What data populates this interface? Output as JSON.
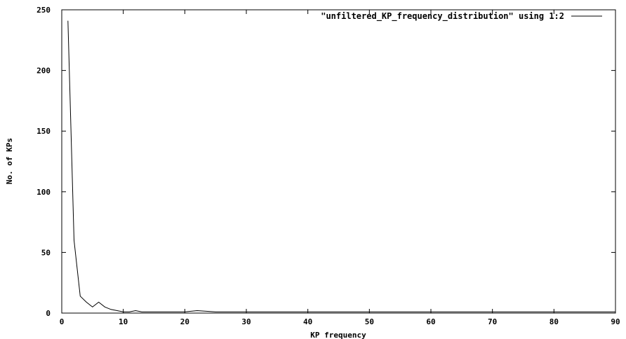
{
  "chart_data": {
    "type": "line",
    "title": "",
    "xlabel": "KP frequency",
    "ylabel": "No. of KPs",
    "xlim": [
      0,
      90
    ],
    "ylim": [
      0,
      250
    ],
    "x_ticks": [
      "0",
      "10",
      "20",
      "30",
      "40",
      "50",
      "60",
      "70",
      "80",
      "90"
    ],
    "y_ticks": [
      "0",
      "50",
      "100",
      "150",
      "200",
      "250"
    ],
    "grid": false,
    "legend_position": "top-right",
    "series": [
      {
        "name": "\"unfiltered_KP_frequency_distribution\" using 1:2",
        "color": "#000000",
        "x": [
          1,
          2,
          3,
          4,
          5,
          6,
          7,
          8,
          9,
          10,
          11,
          12,
          13,
          14,
          15,
          16,
          18,
          20,
          22,
          25,
          30,
          40,
          50,
          60,
          70,
          80,
          90
        ],
        "y": [
          241,
          60,
          14,
          9,
          5,
          9,
          5,
          3,
          2,
          1,
          1,
          2,
          1,
          1,
          1,
          1,
          1,
          1,
          2,
          1,
          1,
          1,
          1,
          1,
          1,
          1,
          1
        ]
      }
    ]
  }
}
